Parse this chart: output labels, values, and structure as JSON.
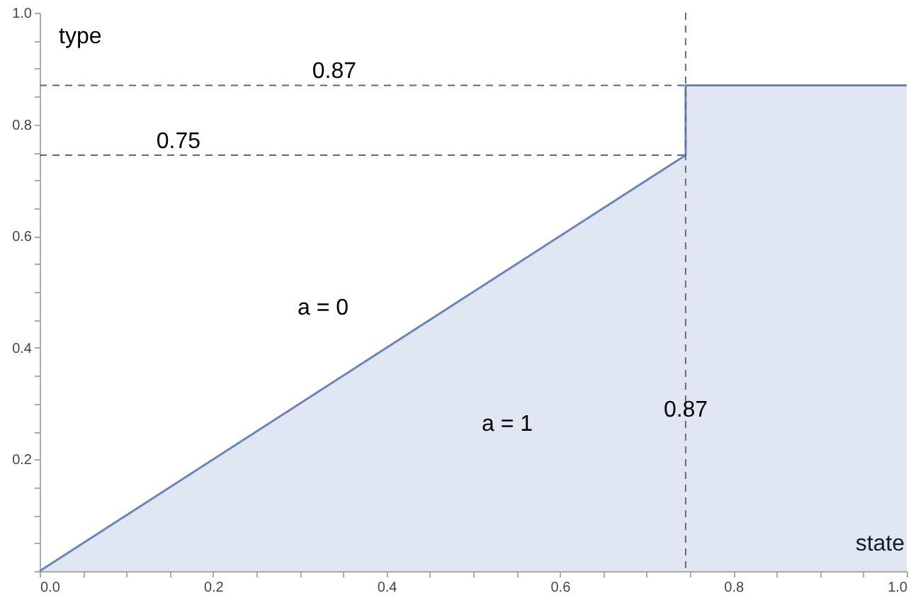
{
  "chart_data": {
    "type": "area",
    "xlabel": "state",
    "ylabel": "type",
    "x": [
      0,
      0.745,
      0.745,
      1
    ],
    "series": [
      {
        "color": "#6a85bd",
        "values": [
          0,
          0.745,
          0.87,
          0.87
        ]
      }
    ],
    "xlim": [
      0,
      1
    ],
    "ylim": [
      0,
      1
    ],
    "xticks": [
      {
        "value": 0,
        "label": "0.0"
      },
      {
        "value": 0.05,
        "label": null
      },
      {
        "value": 0.1,
        "label": null
      },
      {
        "value": 0.15,
        "label": null
      },
      0.2,
      {
        "value": 0.25,
        "label": null
      },
      {
        "value": 0.3,
        "label": null
      },
      {
        "value": 0.35,
        "label": null
      },
      0.4,
      {
        "value": 0.45,
        "label": null
      },
      {
        "value": 0.5,
        "label": null
      },
      {
        "value": 0.55,
        "label": null
      },
      0.6,
      {
        "value": 0.65,
        "label": null
      },
      {
        "value": 0.7,
        "label": null
      },
      {
        "value": 0.75,
        "label": null
      },
      0.8,
      {
        "value": 0.85,
        "label": null
      },
      {
        "value": 0.9,
        "label": null
      },
      {
        "value": 0.95,
        "label": null
      },
      {
        "value": 1,
        "label": "1.0"
      }
    ],
    "yticks": [
      {
        "value": 0,
        "label": null
      },
      {
        "value": 0.05,
        "label": null
      },
      {
        "value": 0.1,
        "label": null
      },
      {
        "value": 0.15,
        "label": null
      },
      0.2,
      {
        "value": 0.25,
        "label": null
      },
      {
        "value": 0.3,
        "label": null
      },
      {
        "value": 0.35,
        "label": null
      },
      0.4,
      {
        "value": 0.45,
        "label": null
      },
      {
        "value": 0.5,
        "label": null
      },
      {
        "value": 0.55,
        "label": null
      },
      0.6,
      {
        "value": 0.65,
        "label": null
      },
      {
        "value": 0.7,
        "label": null
      },
      {
        "value": 0.75,
        "label": null
      },
      0.8,
      {
        "value": 0.85,
        "label": null
      },
      {
        "value": 0.9,
        "label": null
      },
      {
        "value": 0.95,
        "label": null
      },
      {
        "value": 1,
        "label": "1.0"
      }
    ],
    "ref_lines": [
      {
        "axis": "y",
        "value": 0.87,
        "color": "#4f68a3",
        "line_style": "dashed",
        "label": "0.87"
      },
      {
        "axis": "y",
        "value": 0.745,
        "color": "#4f68a3",
        "line_style": "dashed",
        "label": "0.75"
      },
      {
        "axis": "x",
        "value": 0.745,
        "color": "#6b6b6b",
        "line_style": "dashed"
      }
    ],
    "annotations": [
      "a = 0",
      "a = 1",
      "0.87"
    ],
    "grid": false
  }
}
